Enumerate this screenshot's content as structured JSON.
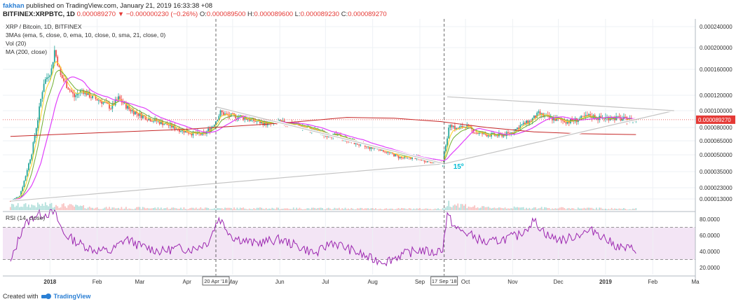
{
  "header": {
    "author": "fakhan",
    "published": "published on TradingView.com, January 21, 2019 16:33:38 +08",
    "symbol": "BITFINEX:XRPBTC, 1D",
    "last": "0.000089270",
    "change": "−0.000000230 (−0.26%)",
    "o_label": "O:",
    "o": "0.000089500",
    "h_label": "H:",
    "h": "0.000089600",
    "l_label": "L:",
    "l": "0.000089230",
    "c_label": "C:",
    "c": "0.000089270"
  },
  "studies": {
    "title": "XRP / Bitcoin, 1D, BITFINEX",
    "mas": "3MAs (ema, 5, close, 0, ema, 10, close, 0, sma, 21, close, 0)",
    "vol": "Vol (20)",
    "ma200": "MA (200, close)",
    "rsi": "RSI (14, close)"
  },
  "footer": {
    "created": "Created with",
    "brand": "TradingView"
  },
  "annotations": {
    "angle": "15º",
    "marker1": "20 Apr '18",
    "marker2": "17 Sep '18"
  },
  "colors": {
    "up": "#26a69a",
    "down": "#ef5350",
    "ema5": "#ffd21f",
    "ema10": "#6fae2f",
    "sma21": "#e040fb",
    "ma200": "#c62828",
    "rsi": "#9c27b0",
    "trendline": "#ffffff",
    "lastprice": "#e53935",
    "angle_text": "#00bcd4"
  },
  "chart_data": {
    "type": "candlestick",
    "symbol": "XRP / Bitcoin, 1D, BITFINEX",
    "price_axis": {
      "ticks": [
        "0.000240000",
        "0.000200000",
        "0.000160000",
        "0.000120000",
        "0.000100000",
        "0.000080000",
        "0.000065000",
        "0.000050000",
        "0.000035000",
        "0.000023000",
        "0.000013000"
      ],
      "current": "0.000089270"
    },
    "rsi_axis": {
      "ticks": [
        "80.0000",
        "60.0000",
        "40.0000",
        "20.0000"
      ],
      "upper_band": 70,
      "lower_band": 30
    },
    "x_axis": {
      "ticks": [
        "2018",
        "Feb",
        "Mar",
        "Apr",
        "May",
        "Jun",
        "Jul",
        "Aug",
        "Sep",
        "Oct",
        "Nov",
        "Dec",
        "2019",
        "Feb",
        "Ma"
      ]
    },
    "price_path": [
      [
        "2017-12-06",
        1.1e-05
      ],
      [
        "2017-12-12",
        1.6e-05
      ],
      [
        "2017-12-16",
        3.2e-05
      ],
      [
        "2017-12-20",
        5.2e-05
      ],
      [
        "2017-12-24",
        9e-05
      ],
      [
        "2017-12-28",
        0.00014
      ],
      [
        "2018-01-02",
        0.00016
      ],
      [
        "2018-01-04",
        0.000195
      ],
      [
        "2018-01-08",
        0.00015
      ],
      [
        "2018-01-12",
        0.000135
      ],
      [
        "2018-01-17",
        0.000118
      ],
      [
        "2018-01-22",
        0.000128
      ],
      [
        "2018-01-28",
        0.000118
      ],
      [
        "2018-02-04",
        0.000112
      ],
      [
        "2018-02-10",
        0.000104
      ],
      [
        "2018-02-15",
        0.000116
      ],
      [
        "2018-02-22",
        0.000102
      ],
      [
        "2018-03-01",
        9.5e-05
      ],
      [
        "2018-03-08",
        9e-05
      ],
      [
        "2018-03-15",
        8.6e-05
      ],
      [
        "2018-03-25",
        7.9e-05
      ],
      [
        "2018-04-05",
        7.3e-05
      ],
      [
        "2018-04-12",
        7.2e-05
      ],
      [
        "2018-04-18",
        8.2e-05
      ],
      [
        "2018-04-23",
        9.8e-05
      ],
      [
        "2018-04-28",
        9.4e-05
      ],
      [
        "2018-05-06",
        9.3e-05
      ],
      [
        "2018-05-15",
        8.8e-05
      ],
      [
        "2018-05-25",
        8.4e-05
      ],
      [
        "2018-06-01",
        8.6e-05
      ],
      [
        "2018-06-10",
        8.4e-05
      ],
      [
        "2018-06-20",
        7.9e-05
      ],
      [
        "2018-07-01",
        7.2e-05
      ],
      [
        "2018-07-10",
        7e-05
      ],
      [
        "2018-07-20",
        6.3e-05
      ],
      [
        "2018-07-28",
        5.8e-05
      ],
      [
        "2018-08-05",
        5.7e-05
      ],
      [
        "2018-08-12",
        5.2e-05
      ],
      [
        "2018-08-20",
        4.7e-05
      ],
      [
        "2018-08-28",
        4.8e-05
      ],
      [
        "2018-09-05",
        4.5e-05
      ],
      [
        "2018-09-12",
        4.3e-05
      ],
      [
        "2018-09-16",
        4.2e-05
      ],
      [
        "2018-09-18",
        6.2e-05
      ],
      [
        "2018-09-21",
        8.5e-05
      ],
      [
        "2018-09-25",
        7.8e-05
      ],
      [
        "2018-10-01",
        8.2e-05
      ],
      [
        "2018-10-08",
        7.4e-05
      ],
      [
        "2018-10-15",
        7.2e-05
      ],
      [
        "2018-10-22",
        7.1e-05
      ],
      [
        "2018-10-30",
        7.3e-05
      ],
      [
        "2018-11-06",
        8.2e-05
      ],
      [
        "2018-11-12",
        8.7e-05
      ],
      [
        "2018-11-18",
        9.6e-05
      ],
      [
        "2018-11-24",
        9.2e-05
      ],
      [
        "2018-12-01",
        8.9e-05
      ],
      [
        "2018-12-08",
        8.7e-05
      ],
      [
        "2018-12-15",
        9e-05
      ],
      [
        "2018-12-22",
        9.4e-05
      ],
      [
        "2018-12-28",
        9.1e-05
      ],
      [
        "2019-01-05",
        9.2e-05
      ],
      [
        "2019-01-12",
        9e-05
      ],
      [
        "2019-01-21",
        8.9e-05
      ]
    ],
    "rsi_path": [
      [
        "2017-12-06",
        25
      ],
      [
        "2017-12-14",
        70
      ],
      [
        "2017-12-22",
        85
      ],
      [
        "2018-01-04",
        88
      ],
      [
        "2018-01-10",
        62
      ],
      [
        "2018-01-20",
        50
      ],
      [
        "2018-01-30",
        42
      ],
      [
        "2018-02-10",
        40
      ],
      [
        "2018-02-20",
        56
      ],
      [
        "2018-03-01",
        47
      ],
      [
        "2018-03-15",
        40
      ],
      [
        "2018-03-25",
        44
      ],
      [
        "2018-04-05",
        43
      ],
      [
        "2018-04-15",
        52
      ],
      [
        "2018-04-22",
        82
      ],
      [
        "2018-05-01",
        58
      ],
      [
        "2018-05-15",
        50
      ],
      [
        "2018-06-01",
        55
      ],
      [
        "2018-06-15",
        45
      ],
      [
        "2018-06-25",
        37
      ],
      [
        "2018-07-05",
        52
      ],
      [
        "2018-07-20",
        40
      ],
      [
        "2018-08-01",
        30
      ],
      [
        "2018-08-10",
        28
      ],
      [
        "2018-08-20",
        36
      ],
      [
        "2018-09-01",
        42
      ],
      [
        "2018-09-10",
        38
      ],
      [
        "2018-09-16",
        44
      ],
      [
        "2018-09-19",
        85
      ],
      [
        "2018-09-25",
        68
      ],
      [
        "2018-10-05",
        60
      ],
      [
        "2018-10-15",
        50
      ],
      [
        "2018-10-25",
        55
      ],
      [
        "2018-11-05",
        60
      ],
      [
        "2018-11-15",
        78
      ],
      [
        "2018-11-25",
        58
      ],
      [
        "2018-12-05",
        54
      ],
      [
        "2018-12-15",
        62
      ],
      [
        "2018-12-25",
        66
      ],
      [
        "2019-01-05",
        50
      ],
      [
        "2019-01-12",
        44
      ],
      [
        "2019-01-21",
        43
      ]
    ],
    "ma200_path": [
      [
        "2017-12-06",
        7e-05
      ],
      [
        "2018-02-01",
        7.4e-05
      ],
      [
        "2018-04-01",
        7.8e-05
      ],
      [
        "2018-06-01",
        8.5e-05
      ],
      [
        "2018-07-15",
        9.2e-05
      ],
      [
        "2018-08-15",
        9.1e-05
      ],
      [
        "2018-09-15",
        8.7e-05
      ],
      [
        "2018-10-15",
        8e-05
      ],
      [
        "2018-11-15",
        7.5e-05
      ],
      [
        "2018-12-15",
        7.3e-05
      ],
      [
        "2019-01-21",
        7.2e-05
      ]
    ],
    "trendlines": [
      {
        "from": [
          "2017-12-06",
          1.1e-05
        ],
        "to": [
          "2018-09-17",
          4.2e-05
        ]
      },
      {
        "from": [
          "2018-04-20",
          0.000105
        ],
        "to": [
          "2018-09-17",
          4.2e-05
        ]
      },
      {
        "from": [
          "2018-09-17",
          4.2e-05
        ],
        "to": [
          "2019-02-15",
          0.0001
        ]
      },
      {
        "from": [
          "2018-09-19",
          0.000118
        ],
        "to": [
          "2019-02-15",
          0.0001
        ]
      }
    ],
    "markers": [
      {
        "date": "2018-04-20",
        "label": "20 Apr '18"
      },
      {
        "date": "2018-09-17",
        "label": "17 Sep '18"
      }
    ]
  }
}
